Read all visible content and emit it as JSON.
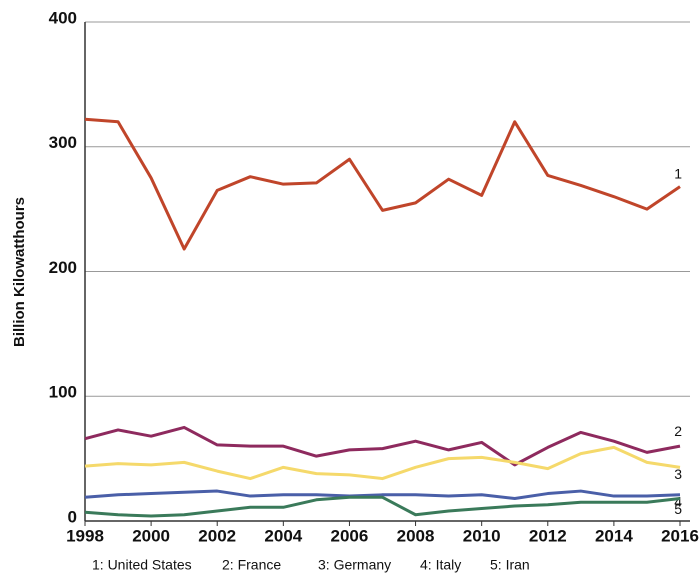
{
  "chart_data": {
    "type": "line",
    "y_label": "Billion Kilowatthours",
    "x": [
      1998,
      1999,
      2000,
      2001,
      2002,
      2003,
      2004,
      2005,
      2006,
      2007,
      2008,
      2009,
      2010,
      2011,
      2012,
      2013,
      2014,
      2015,
      2016
    ],
    "xlim": [
      1998,
      2016
    ],
    "xticks": [
      1998,
      2000,
      2002,
      2004,
      2006,
      2008,
      2010,
      2012,
      2014,
      2016
    ],
    "ylim": [
      0,
      400
    ],
    "yticks": [
      0,
      100,
      200,
      300,
      400
    ],
    "grid": true,
    "series": [
      {
        "name": "1: United States",
        "end_label": "1",
        "color": "#c0452a",
        "values": [
          322,
          320,
          275,
          218,
          265,
          276,
          270,
          271,
          290,
          249,
          255,
          274,
          261,
          320,
          277,
          269,
          260,
          250,
          268
        ]
      },
      {
        "name": "2: France",
        "end_label": "2",
        "color": "#8e2a5e",
        "values": [
          66,
          73,
          68,
          75,
          61,
          60,
          60,
          52,
          57,
          58,
          64,
          57,
          63,
          45,
          59,
          71,
          64,
          55,
          60
        ]
      },
      {
        "name": "3: Germany",
        "end_label": "3",
        "color": "#f5d96b",
        "values": [
          44,
          46,
          45,
          47,
          40,
          34,
          43,
          38,
          37,
          34,
          43,
          50,
          51,
          47,
          42,
          54,
          59,
          47,
          43
        ]
      },
      {
        "name": "4: Italy",
        "end_label": "4",
        "color": "#4a5fa8",
        "values": [
          19,
          21,
          22,
          23,
          24,
          20,
          21,
          21,
          20,
          21,
          21,
          20,
          21,
          18,
          22,
          24,
          20,
          20,
          21
        ]
      },
      {
        "name": "5: Iran",
        "end_label": "5",
        "color": "#3a7a5a",
        "values": [
          7,
          5,
          4,
          5,
          8,
          11,
          11,
          17,
          19,
          19,
          5,
          8,
          10,
          12,
          13,
          15,
          15,
          15,
          18
        ]
      }
    ]
  }
}
